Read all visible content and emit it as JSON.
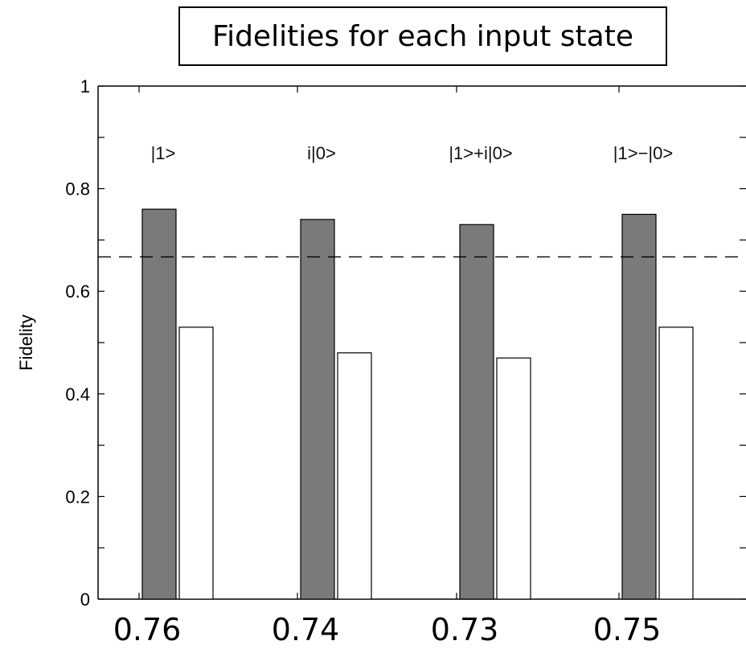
{
  "chart_data": {
    "type": "bar",
    "title": "Fidelities for each input state",
    "ylabel": "Fidelity",
    "xlabel": "",
    "ylim": [
      0,
      1
    ],
    "yticks": [
      "0",
      "0.2",
      "0.4",
      "0.6",
      "0.8",
      "1"
    ],
    "categories": [
      "|1>",
      "i|0>",
      "|1>+i|0>",
      "|1>−|0>"
    ],
    "series": [
      {
        "values": [
          0.76,
          0.74,
          0.73,
          0.75
        ],
        "color": "#7a7a7a"
      },
      {
        "values": [
          0.53,
          0.48,
          0.47,
          0.53
        ],
        "color": "#ffffff"
      }
    ],
    "reference_line": {
      "y": 0.667,
      "style": "dashed"
    },
    "value_labels": [
      "0.76",
      "0.74",
      "0.73",
      "0.75"
    ],
    "grid": false
  }
}
